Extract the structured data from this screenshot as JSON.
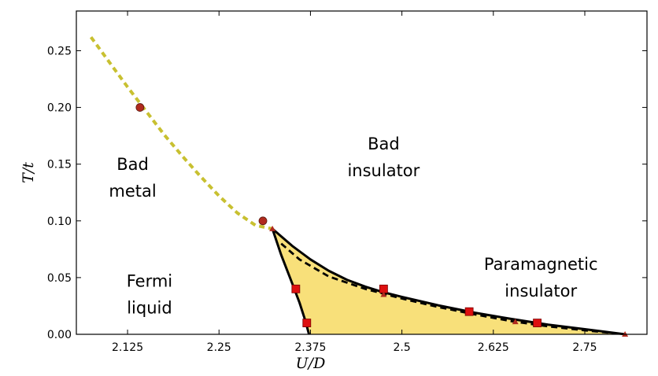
{
  "chart_data": {
    "type": "line",
    "xlabel": "U/D",
    "ylabel": "T/t",
    "xlim": [
      2.055,
      2.835
    ],
    "ylim": [
      0.0,
      0.285
    ],
    "xticks": [
      "2.125",
      "2.25",
      "2.375",
      "2.5",
      "2.625",
      "2.75"
    ],
    "xtick_values": [
      2.125,
      2.25,
      2.375,
      2.5,
      2.625,
      2.75
    ],
    "yticks": [
      "0.00",
      "0.05",
      "0.10",
      "0.15",
      "0.20",
      "0.25"
    ],
    "ytick_values": [
      0.0,
      0.05,
      0.1,
      0.15,
      0.2,
      0.25
    ],
    "grid": false,
    "region_labels": [
      {
        "lines": [
          "Bad",
          "metal"
        ],
        "x": 2.132,
        "y": 0.145,
        "anchor": "middle"
      },
      {
        "lines": [
          "Fermi",
          "liquid"
        ],
        "x": 2.155,
        "y": 0.042,
        "anchor": "middle"
      },
      {
        "lines": [
          "Bad",
          "insulator"
        ],
        "x": 2.475,
        "y": 0.163,
        "anchor": "middle"
      },
      {
        "lines": [
          "Paramagnetic",
          "insulator"
        ],
        "x": 2.69,
        "y": 0.057,
        "anchor": "middle"
      }
    ],
    "series": [
      {
        "role": "crossover",
        "style": "dotted",
        "color": "#c8c030",
        "x": [
          2.075,
          2.1,
          2.125,
          2.15,
          2.175,
          2.2,
          2.225,
          2.25,
          2.275,
          2.3,
          2.323
        ],
        "y": [
          0.262,
          0.24,
          0.218,
          0.197,
          0.176,
          0.157,
          0.139,
          0.122,
          0.107,
          0.096,
          0.093
        ]
      },
      {
        "role": "boundary-upper",
        "style": "solid",
        "color": "#000000",
        "x": [
          2.323,
          2.35,
          2.375,
          2.4,
          2.425,
          2.45,
          2.475,
          2.5,
          2.55,
          2.6,
          2.65,
          2.7,
          2.75,
          2.805
        ],
        "y": [
          0.093,
          0.078,
          0.066,
          0.056,
          0.048,
          0.042,
          0.037,
          0.033,
          0.0255,
          0.019,
          0.0135,
          0.0085,
          0.0045,
          0.0
        ]
      },
      {
        "role": "boundary-lower",
        "style": "solid",
        "color": "#000000",
        "x": [
          2.323,
          2.335,
          2.35,
          2.36,
          2.368,
          2.373
        ],
        "y": [
          0.093,
          0.07,
          0.045,
          0.028,
          0.012,
          0.0
        ]
      },
      {
        "role": "boundary-dashed",
        "style": "dashed",
        "color": "#000000",
        "x": [
          2.335,
          2.36,
          2.4,
          2.45,
          2.5,
          2.55,
          2.6,
          2.65,
          2.7,
          2.75,
          2.805
        ],
        "y": [
          0.08,
          0.066,
          0.051,
          0.04,
          0.0315,
          0.024,
          0.0175,
          0.0115,
          0.007,
          0.0035,
          0.0
        ]
      }
    ],
    "points": [
      {
        "marker": "circle",
        "color": "#b02a1e",
        "x": 2.142,
        "y": 0.2
      },
      {
        "marker": "circle",
        "color": "#b02a1e",
        "x": 2.31,
        "y": 0.1
      },
      {
        "marker": "square",
        "color": "#dd1010",
        "x": 2.355,
        "y": 0.04
      },
      {
        "marker": "square",
        "color": "#dd1010",
        "x": 2.37,
        "y": 0.01
      },
      {
        "marker": "square",
        "color": "#dd1010",
        "x": 2.475,
        "y": 0.04
      },
      {
        "marker": "square",
        "color": "#dd1010",
        "x": 2.592,
        "y": 0.02
      },
      {
        "marker": "square",
        "color": "#dd1010",
        "x": 2.685,
        "y": 0.01
      },
      {
        "marker": "triangle",
        "color": "#b02a1e",
        "x": 2.323,
        "y": 0.093
      },
      {
        "marker": "triangle",
        "color": "#b02a1e",
        "x": 2.475,
        "y": 0.035
      },
      {
        "marker": "triangle",
        "color": "#b02a1e",
        "x": 2.655,
        "y": 0.011
      },
      {
        "marker": "triangle",
        "color": "#b02a1e",
        "x": 2.805,
        "y": 0.0
      }
    ],
    "fill_color": "#f8e07a",
    "frame_color": "#000000"
  }
}
